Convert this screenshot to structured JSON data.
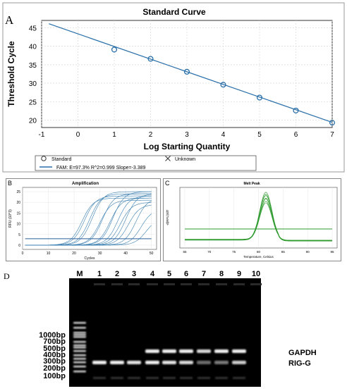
{
  "panel_labels": {
    "a": "A",
    "b": "B",
    "c": "C",
    "d": "D"
  },
  "colors": {
    "curve": "#2a6fa8",
    "point": "#2a6fa8",
    "amp": "#3a7fb0",
    "threshold": "#2a5f9a",
    "melt": "#2e9a2e",
    "gel_bg": "#000000",
    "band": "#f2f2f2"
  },
  "legend": {
    "standard": "Standard",
    "unknown": "Unknown",
    "fam": "FAM: E=97.3% R^2=0.999 Slope=-3.389",
    "standard_icon": "circle-marker-icon",
    "unknown_icon": "x-marker-icon"
  },
  "chart_data": [
    {
      "type": "scatter",
      "title": "Standard Curve",
      "xlabel": "Log Starting Quantity",
      "ylabel": "Threshold Cycle",
      "xlim": [
        -1,
        7
      ],
      "ylim": [
        18,
        47
      ],
      "xticks": [
        -1,
        0,
        1,
        2,
        3,
        4,
        5,
        6,
        7
      ],
      "yticks": [
        20,
        25,
        30,
        35,
        40,
        45
      ],
      "grid": true,
      "points": [
        {
          "x": 1,
          "y": 39.1
        },
        {
          "x": 2,
          "y": 36.6
        },
        {
          "x": 3,
          "y": 33.1
        },
        {
          "x": 4,
          "y": 29.6
        },
        {
          "x": 5,
          "y": 26.1
        },
        {
          "x": 6,
          "y": 22.6
        },
        {
          "x": 7,
          "y": 19.3
        }
      ],
      "fit_line": [
        {
          "x": -0.8,
          "y": 46.1
        },
        {
          "x": 7,
          "y": 19.4
        }
      ]
    },
    {
      "type": "line",
      "title": "Amplification",
      "xlabel": "Cycles",
      "ylabel": "RFU (10^3)",
      "xlim": [
        0,
        52
      ],
      "ylim": [
        -2,
        27
      ],
      "xticks": [
        0,
        10,
        20,
        30,
        40,
        50
      ],
      "yticks": [
        0,
        5,
        10,
        15,
        20,
        25
      ],
      "threshold": 3,
      "series": [
        {
          "ct": 19,
          "plateau": 22
        },
        {
          "ct": 20,
          "plateau": 23
        },
        {
          "ct": 22,
          "plateau": 24
        },
        {
          "ct": 23,
          "plateau": 25
        },
        {
          "ct": 26,
          "plateau": 21
        },
        {
          "ct": 27,
          "plateau": 24
        },
        {
          "ct": 30,
          "plateau": 22
        },
        {
          "ct": 31,
          "plateau": 25
        },
        {
          "ct": 33,
          "plateau": 23
        },
        {
          "ct": 34,
          "plateau": 20
        },
        {
          "ct": 36,
          "plateau": 24
        },
        {
          "ct": 37,
          "plateau": 19
        },
        {
          "ct": 40,
          "plateau": 22
        },
        {
          "ct": 42,
          "plateau": 17
        },
        {
          "ct": 44,
          "plateau": 13
        }
      ]
    },
    {
      "type": "line",
      "title": "Melt Peak",
      "xlabel": "Temperature, Celsius",
      "ylabel": "-d(RFU)/dT",
      "xlim": [
        64,
        96
      ],
      "ylim": [
        -60,
        450
      ],
      "xticks": [
        65,
        70,
        75,
        80,
        85,
        90,
        95
      ],
      "threshold": 100,
      "peak_temp": 81.5,
      "series": [
        {
          "peak": 400,
          "base": 10
        },
        {
          "peak": 385,
          "base": 8
        },
        {
          "peak": 370,
          "base": 12
        },
        {
          "peak": 355,
          "base": 6
        },
        {
          "peak": 340,
          "base": 14
        },
        {
          "peak": 325,
          "base": 9
        },
        {
          "peak": 310,
          "base": 11
        }
      ]
    }
  ],
  "gel": {
    "lane_labels": [
      "M",
      "1",
      "2",
      "3",
      "4",
      "5",
      "6",
      "7",
      "8",
      "9",
      "10"
    ],
    "ladder_labels": [
      "1000bp",
      "700bp",
      "500bp",
      "400bp",
      "300bp",
      "200bp",
      "100bp"
    ],
    "bands": {
      "gapdh": [
        0,
        0,
        0,
        1,
        1,
        1,
        0.9,
        1,
        1,
        0
      ],
      "rig_g": [
        1,
        1,
        0.95,
        1,
        0.95,
        0.9,
        0.45,
        0.5,
        0.85,
        0
      ]
    },
    "band_labels": {
      "gapdh": "GAPDH",
      "rig_g": "RIG-G"
    }
  }
}
